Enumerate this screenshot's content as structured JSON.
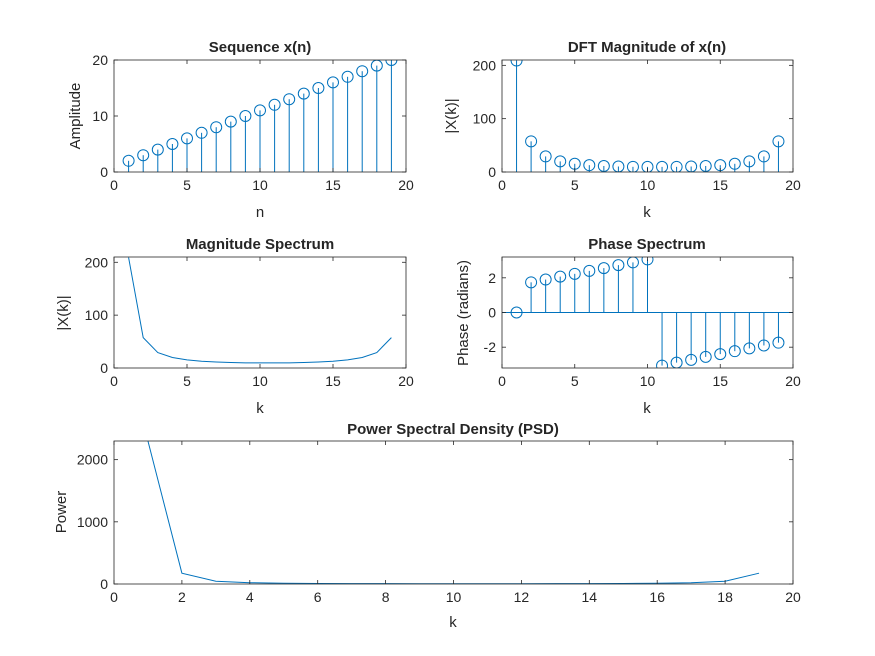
{
  "figure": {
    "background": "#ffffff"
  },
  "style": {
    "line_color": "#0072BD",
    "axis_color": "#262626"
  },
  "chart_data": [
    {
      "id": "seq",
      "type": "stem",
      "title": "Sequence x(n)",
      "xlabel": "n",
      "ylabel": "Amplitude",
      "xlim": [
        0,
        20
      ],
      "ylim": [
        0,
        20
      ],
      "xticks": [
        0,
        5,
        10,
        15,
        20
      ],
      "yticks": [
        0,
        10,
        20
      ],
      "grid": false,
      "x": [
        1,
        2,
        3,
        4,
        5,
        6,
        7,
        8,
        9,
        10,
        11,
        12,
        13,
        14,
        15,
        16,
        17,
        18,
        19
      ],
      "y": [
        2,
        3,
        4,
        5,
        6,
        7,
        8,
        9,
        10,
        11,
        12,
        13,
        14,
        15,
        16,
        17,
        18,
        19,
        20
      ]
    },
    {
      "id": "dftmag",
      "type": "stem",
      "title": "DFT Magnitude of x(n)",
      "xlabel": "k",
      "ylabel": "|X(k)|",
      "xlim": [
        0,
        20
      ],
      "ylim": [
        0,
        210
      ],
      "xticks": [
        0,
        5,
        10,
        15,
        20
      ],
      "yticks": [
        0,
        100,
        200
      ],
      "grid": false,
      "x": [
        1,
        2,
        3,
        4,
        5,
        6,
        7,
        8,
        9,
        10,
        11,
        12,
        13,
        14,
        15,
        16,
        17,
        18,
        19
      ],
      "y": [
        209,
        57.5,
        29.2,
        19.9,
        15.4,
        12.8,
        11.3,
        10.3,
        9.7,
        9.6,
        9.6,
        9.7,
        10.3,
        11.3,
        12.8,
        15.4,
        19.9,
        29.2,
        57.5
      ]
    },
    {
      "id": "magspec",
      "type": "line",
      "title": "Magnitude Spectrum",
      "xlabel": "k",
      "ylabel": "|X(k)|",
      "xlim": [
        0,
        20
      ],
      "ylim": [
        0,
        210
      ],
      "xticks": [
        0,
        5,
        10,
        15,
        20
      ],
      "yticks": [
        0,
        100,
        200
      ],
      "grid": false,
      "x": [
        1,
        2,
        3,
        4,
        5,
        6,
        7,
        8,
        9,
        10,
        11,
        12,
        13,
        14,
        15,
        16,
        17,
        18,
        19
      ],
      "y": [
        209,
        57.5,
        29.2,
        19.9,
        15.4,
        12.8,
        11.3,
        10.3,
        9.7,
        9.6,
        9.6,
        9.7,
        10.3,
        11.3,
        12.8,
        15.4,
        19.9,
        29.2,
        57.5
      ]
    },
    {
      "id": "phase",
      "type": "stem",
      "title": "Phase Spectrum",
      "xlabel": "k",
      "ylabel": "Phase (radians)",
      "xlim": [
        0,
        20
      ],
      "ylim": [
        -3.2,
        3.2
      ],
      "xticks": [
        0,
        5,
        10,
        15,
        20
      ],
      "yticks": [
        -2,
        0,
        2
      ],
      "grid": false,
      "x": [
        1,
        2,
        3,
        4,
        5,
        6,
        7,
        8,
        9,
        10,
        11,
        12,
        13,
        14,
        15,
        16,
        17,
        18,
        19
      ],
      "y": [
        0,
        1.74,
        1.9,
        2.07,
        2.23,
        2.4,
        2.56,
        2.73,
        2.89,
        3.06,
        -3.06,
        -2.89,
        -2.73,
        -2.56,
        -2.4,
        -2.23,
        -2.07,
        -1.9,
        -1.74
      ]
    },
    {
      "id": "psd",
      "type": "line",
      "title": "Power Spectral Density (PSD)",
      "xlabel": "k",
      "ylabel": "Power",
      "xlim": [
        0,
        20
      ],
      "ylim": [
        0,
        2300
      ],
      "xticks": [
        0,
        2,
        4,
        6,
        8,
        10,
        12,
        14,
        16,
        18,
        20
      ],
      "yticks": [
        0,
        1000,
        2000
      ],
      "grid": false,
      "x": [
        1,
        2,
        3,
        4,
        5,
        6,
        7,
        8,
        9,
        10,
        11,
        12,
        13,
        14,
        15,
        16,
        17,
        18,
        19
      ],
      "y": [
        2299,
        174,
        45,
        20.8,
        12.5,
        8.6,
        6.7,
        5.6,
        5.0,
        4.8,
        4.8,
        5.0,
        5.6,
        6.7,
        8.6,
        12.5,
        20.8,
        45,
        174
      ]
    }
  ]
}
